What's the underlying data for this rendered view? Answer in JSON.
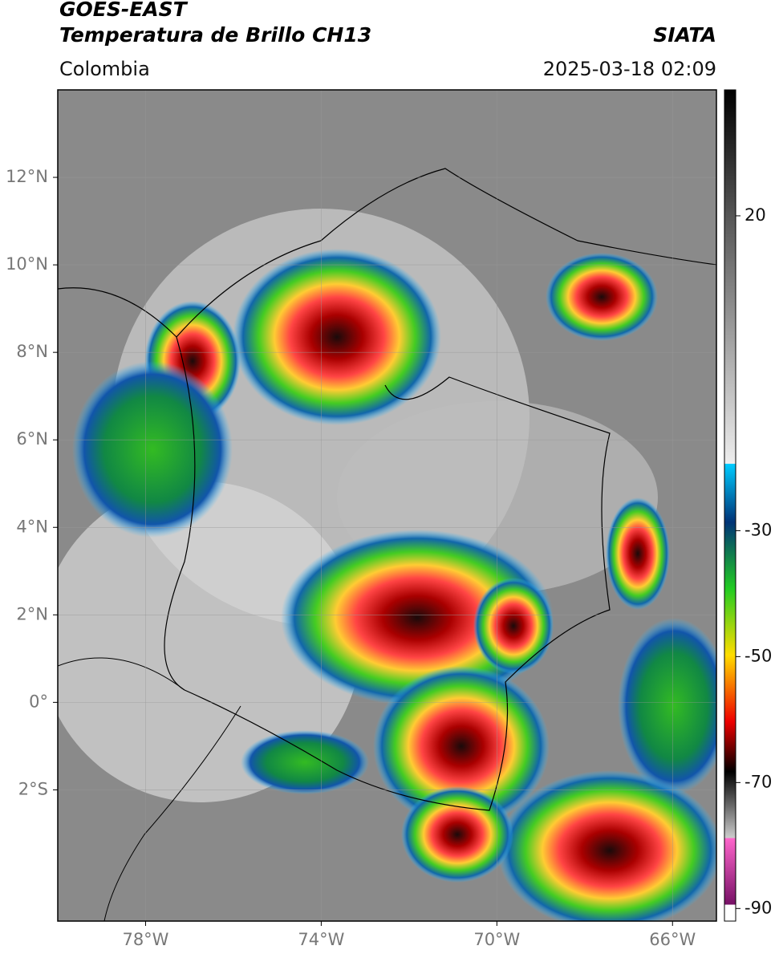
{
  "header": {
    "title": "GOES-EAST",
    "subtitle": "Temperatura de Brillo CH13",
    "source": "SIATA",
    "region": "Colombia",
    "datetime": "2025-03-18 02:09"
  },
  "map": {
    "xlim": [
      -80,
      -65
    ],
    "ylim": [
      -5,
      14
    ],
    "grid": true,
    "xticks": [
      {
        "value": -78,
        "label": "78°W"
      },
      {
        "value": -74,
        "label": "74°W"
      },
      {
        "value": -70,
        "label": "70°W"
      },
      {
        "value": -66,
        "label": "66°W"
      }
    ],
    "yticks": [
      {
        "value": 12,
        "label": "12°N"
      },
      {
        "value": 10,
        "label": "10°N"
      },
      {
        "value": 8,
        "label": "8°N"
      },
      {
        "value": 6,
        "label": "6°N"
      },
      {
        "value": 4,
        "label": "4°N"
      },
      {
        "value": 2,
        "label": "2°N"
      },
      {
        "value": 0,
        "label": "0°"
      },
      {
        "value": -2,
        "label": "2°S"
      }
    ]
  },
  "colorbar": {
    "lim": [
      -92,
      40
    ],
    "ticks": [
      20,
      -30,
      -50,
      -70,
      -90
    ]
  }
}
